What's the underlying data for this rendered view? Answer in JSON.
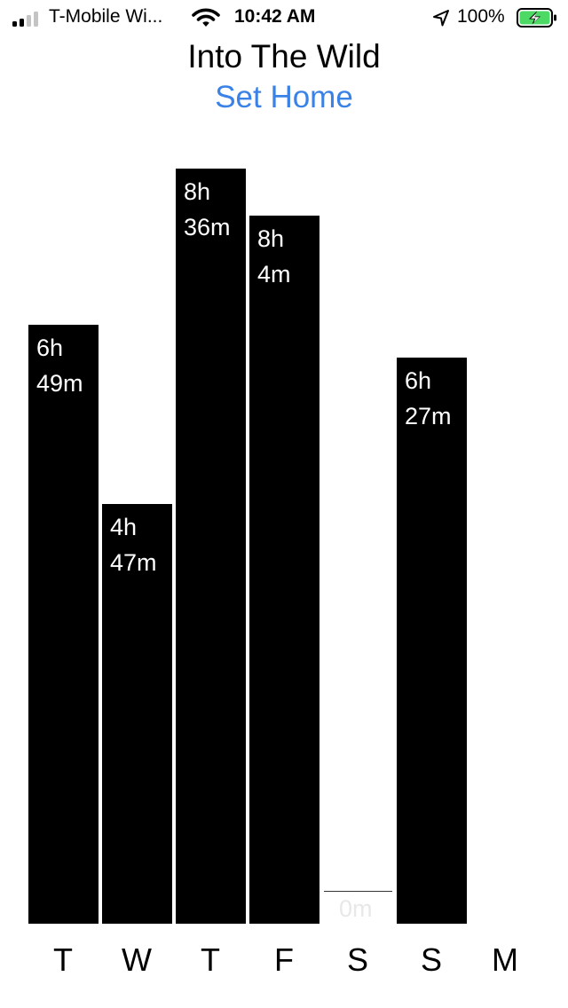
{
  "status_bar": {
    "carrier": "T-Mobile Wi...",
    "time": "10:42 AM",
    "battery_percent": "100%",
    "signal_bars": 2,
    "signal_total": 4,
    "battery_level": 1.0,
    "charging": true,
    "battery_color": "#4cd964"
  },
  "header": {
    "title": "Into The Wild",
    "set_home_label": "Set Home",
    "accent_color": "#3b82e6"
  },
  "chart_data": {
    "type": "bar",
    "title": "",
    "xlabel": "",
    "ylabel": "",
    "unit": "minutes",
    "ylim": [
      0,
      516
    ],
    "categories": [
      "T",
      "W",
      "T",
      "F",
      "S",
      "S",
      "M"
    ],
    "values": [
      409,
      287,
      516,
      484,
      0,
      387,
      null
    ],
    "labels": [
      [
        "6h",
        "49m"
      ],
      [
        "4h",
        "47m"
      ],
      [
        "8h",
        "36m"
      ],
      [
        "8h",
        "4m"
      ],
      [
        "0m"
      ],
      [
        "6h",
        "27m"
      ],
      []
    ],
    "bar_color": "#000000"
  }
}
